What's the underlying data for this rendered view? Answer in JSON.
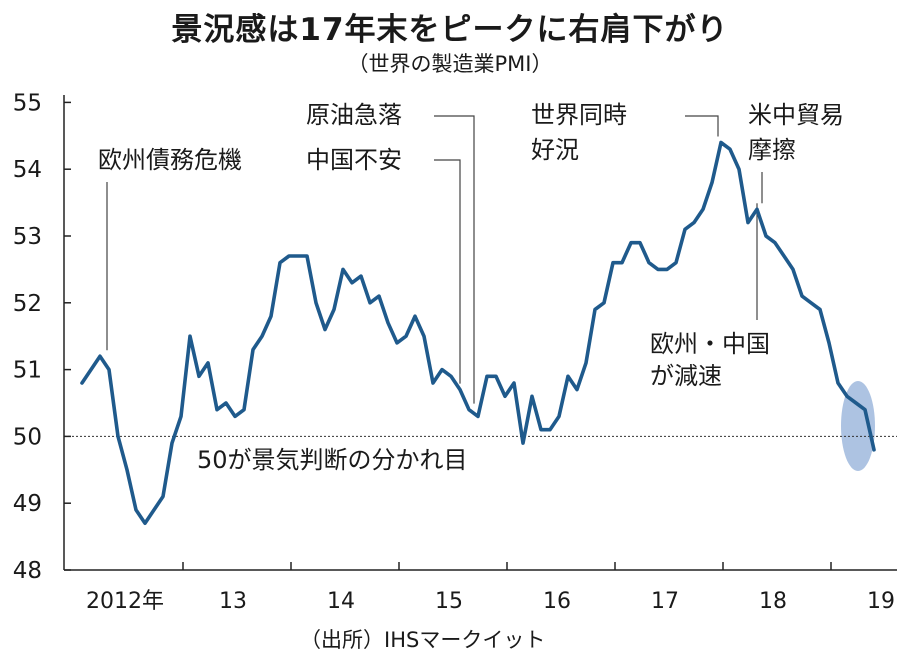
{
  "header": {
    "title": "景況感は17年末をピークに右肩下がり",
    "subtitle": "（世界の製造業PMI）"
  },
  "source": "（出所）IHSマークイット",
  "colors": {
    "line": "#1f5a8c",
    "highlight": "#9fb8dd",
    "reference": "#333333"
  },
  "chart_data": {
    "type": "line",
    "title": "景況感は17年末をピークに右肩下がり",
    "subtitle": "（世界の製造業PMI）",
    "ylim": [
      48,
      55.5
    ],
    "yticks": [
      48,
      49,
      50,
      51,
      52,
      53,
      54,
      55
    ],
    "year_labels": [
      "2012年",
      "13",
      "14",
      "15",
      "16",
      "17",
      "18",
      "19"
    ],
    "x_start": "2012-01",
    "series": [
      {
        "values": [
          50.8,
          51.0,
          51.2,
          51.0,
          50.0,
          49.5,
          48.9,
          48.7,
          48.9,
          49.1,
          49.9,
          50.3,
          51.5,
          50.9,
          51.1,
          50.4,
          50.5,
          50.3,
          50.4,
          51.3,
          51.5,
          51.8,
          52.6,
          52.7,
          52.7,
          52.7,
          52.0,
          51.6,
          51.9,
          52.5,
          52.3,
          52.4,
          52.0,
          52.1,
          51.7,
          51.4,
          51.5,
          51.8,
          51.5,
          50.8,
          51.0,
          50.9,
          50.7,
          50.4,
          50.3,
          50.9,
          50.9,
          50.6,
          50.8,
          49.9,
          50.6,
          50.1,
          50.1,
          50.3,
          50.9,
          50.7,
          51.1,
          51.9,
          52.0,
          52.6,
          52.6,
          52.9,
          52.9,
          52.6,
          52.5,
          52.5,
          52.6,
          53.1,
          53.2,
          53.4,
          53.8,
          54.4,
          54.3,
          54.0,
          53.2,
          53.4,
          53.0,
          52.9,
          52.7,
          52.5,
          52.1,
          52.0,
          51.9,
          51.4,
          50.8,
          50.6,
          50.5,
          50.4,
          49.8
        ]
      }
    ],
    "reference_line": {
      "y": 50,
      "label": "50が景気判断の分かれ目"
    },
    "annotations": [
      {
        "lines": [
          "欧州債務危機"
        ],
        "at_index": 2
      },
      {
        "lines": [
          "原油急落"
        ],
        "at_index": 43
      },
      {
        "lines": [
          "中国不安"
        ],
        "at_index": 42
      },
      {
        "lines": [
          "世界同時",
          "好況"
        ],
        "at_index": 71
      },
      {
        "lines": [
          "米中貿易",
          "摩擦"
        ],
        "at_index": 75
      },
      {
        "lines": [
          "欧州・中国",
          "が減速"
        ],
        "at_index": 75
      }
    ],
    "highlight": {
      "from_index": 84,
      "to_index": 88
    },
    "grid": false
  }
}
